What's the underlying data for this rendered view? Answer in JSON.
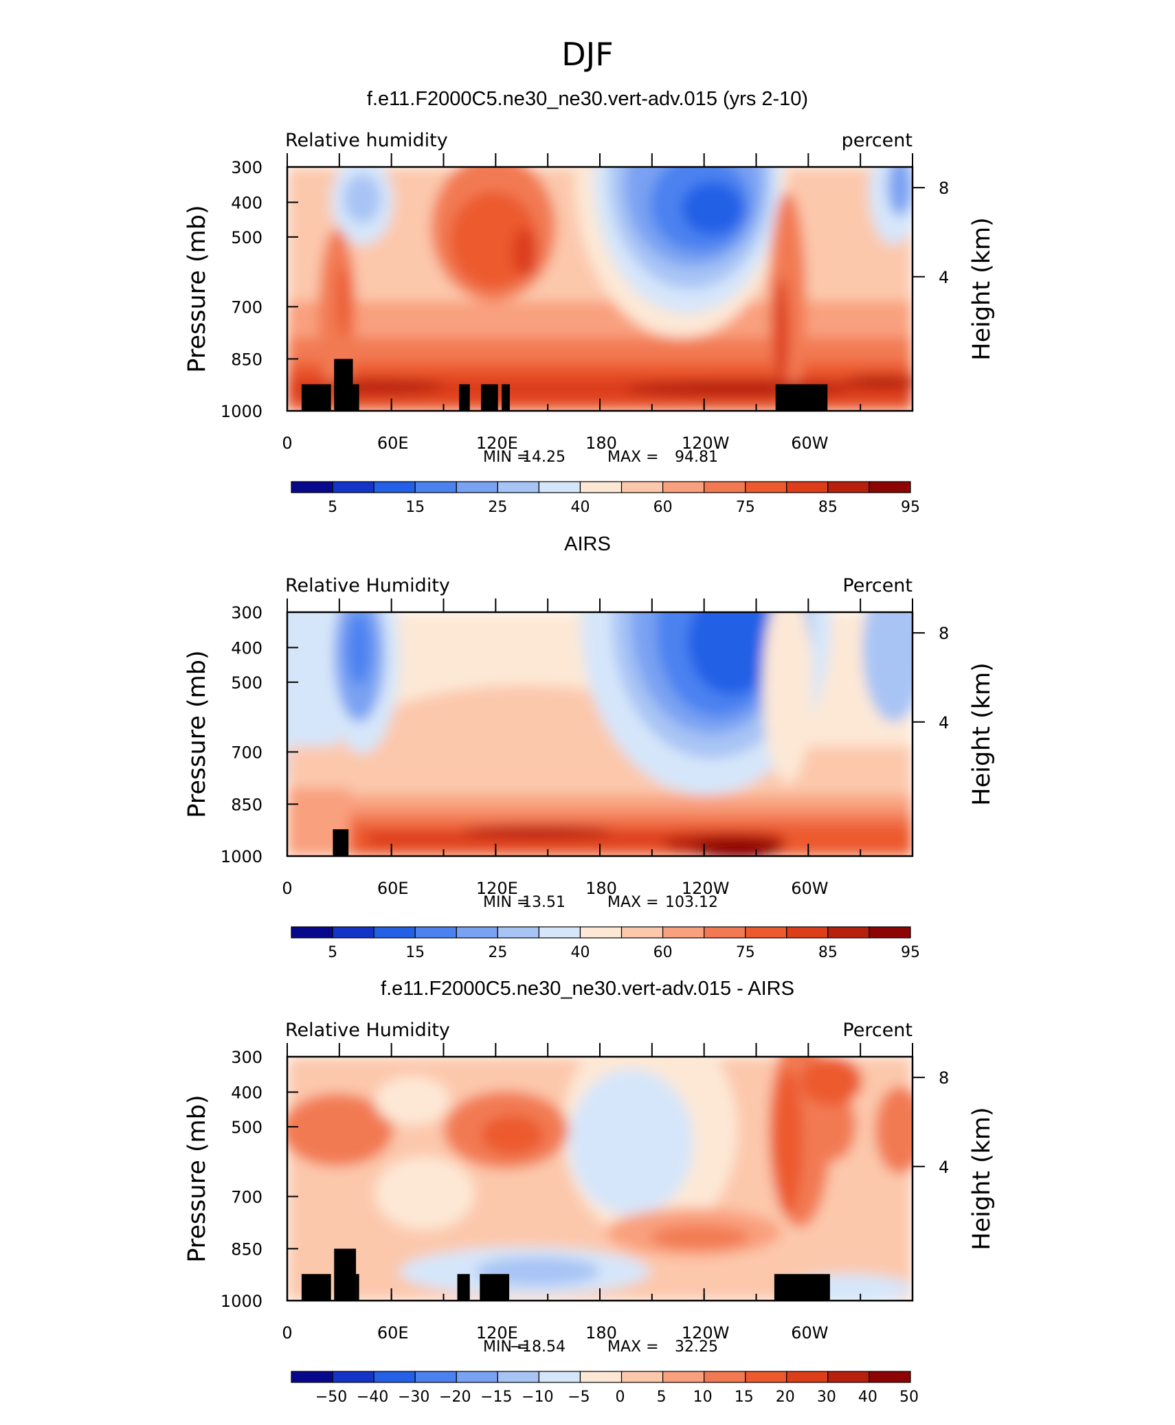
{
  "page_title": "DJF",
  "colors": {
    "rh_scale": [
      "#08088c",
      "#1434c8",
      "#2460e6",
      "#4c82f0",
      "#7aa2f2",
      "#a8c4f5",
      "#d6e6fa",
      "#fde8d6",
      "#fcc8ac",
      "#f9a07e",
      "#f27a52",
      "#ec5a2e",
      "#dc3e1a",
      "#b8200e",
      "#8c0404"
    ],
    "diff_scale": [
      "#08088c",
      "#1434c8",
      "#2460e6",
      "#4c82f0",
      "#7aa2f2",
      "#a8c4f5",
      "#d6e6fa",
      "#fde8d6",
      "#fcc8ac",
      "#f9a07e",
      "#f27a52",
      "#ec5a2e",
      "#dc3e1a",
      "#b8200e",
      "#8c0404"
    ],
    "terrain": "#000000"
  },
  "chart_data": [
    {
      "type": "heatmap",
      "title": "f.e11.F2000C5.ne30_ne30.vert-adv.015 (yrs 2-10)",
      "left_label": "Relative humidity",
      "right_label": "percent",
      "ylabel": "Pressure (mb)",
      "y2label": "Height (km)",
      "x_ticks": [
        "0",
        "60E",
        "120E",
        "180",
        "120W",
        "60W"
      ],
      "y_ticks": [
        "300",
        "400",
        "500",
        "700",
        "850",
        "1000"
      ],
      "y2_ticks": [
        "8",
        "4"
      ],
      "stats": {
        "min_label": "MIN =",
        "min": "14.25",
        "max_label": "MAX =",
        "max": "94.81"
      },
      "colorbar_labels": [
        "5",
        "15",
        "25",
        "40",
        "60",
        "75",
        "85",
        "95"
      ],
      "x_range": [
        0,
        360
      ],
      "y_range": [
        1000,
        300
      ]
    },
    {
      "type": "heatmap",
      "title": "AIRS",
      "left_label": "Relative Humidity",
      "right_label": "Percent",
      "ylabel": "Pressure (mb)",
      "y2label": "Height (km)",
      "x_ticks": [
        "0",
        "60E",
        "120E",
        "180",
        "120W",
        "60W"
      ],
      "y_ticks": [
        "300",
        "400",
        "500",
        "700",
        "850",
        "1000"
      ],
      "y2_ticks": [
        "8",
        "4"
      ],
      "stats": {
        "min_label": "MIN =",
        "min": "13.51",
        "max_label": "MAX =",
        "max": "103.12"
      },
      "colorbar_labels": [
        "5",
        "15",
        "25",
        "40",
        "60",
        "75",
        "85",
        "95"
      ],
      "x_range": [
        0,
        360
      ],
      "y_range": [
        1000,
        300
      ]
    },
    {
      "type": "heatmap",
      "title": "f.e11.F2000C5.ne30_ne30.vert-adv.015 - AIRS",
      "left_label": "Relative Humidity",
      "right_label": "Percent",
      "ylabel": "Pressure (mb)",
      "y2label": "Height (km)",
      "x_ticks": [
        "0",
        "60E",
        "120E",
        "180",
        "120W",
        "60W"
      ],
      "y_ticks": [
        "300",
        "400",
        "500",
        "700",
        "850",
        "1000"
      ],
      "y2_ticks": [
        "8",
        "4"
      ],
      "stats": {
        "min_label": "MIN =",
        "min": "−18.54",
        "max_label": "MAX =",
        "max": "32.25"
      },
      "colorbar_labels": [
        "−50",
        "−40",
        "−30",
        "−20",
        "−15",
        "−10",
        "−5",
        "0",
        "5",
        "10",
        "15",
        "20",
        "30",
        "40",
        "50"
      ],
      "x_range": [
        0,
        360
      ],
      "y_range": [
        1000,
        300
      ]
    }
  ]
}
